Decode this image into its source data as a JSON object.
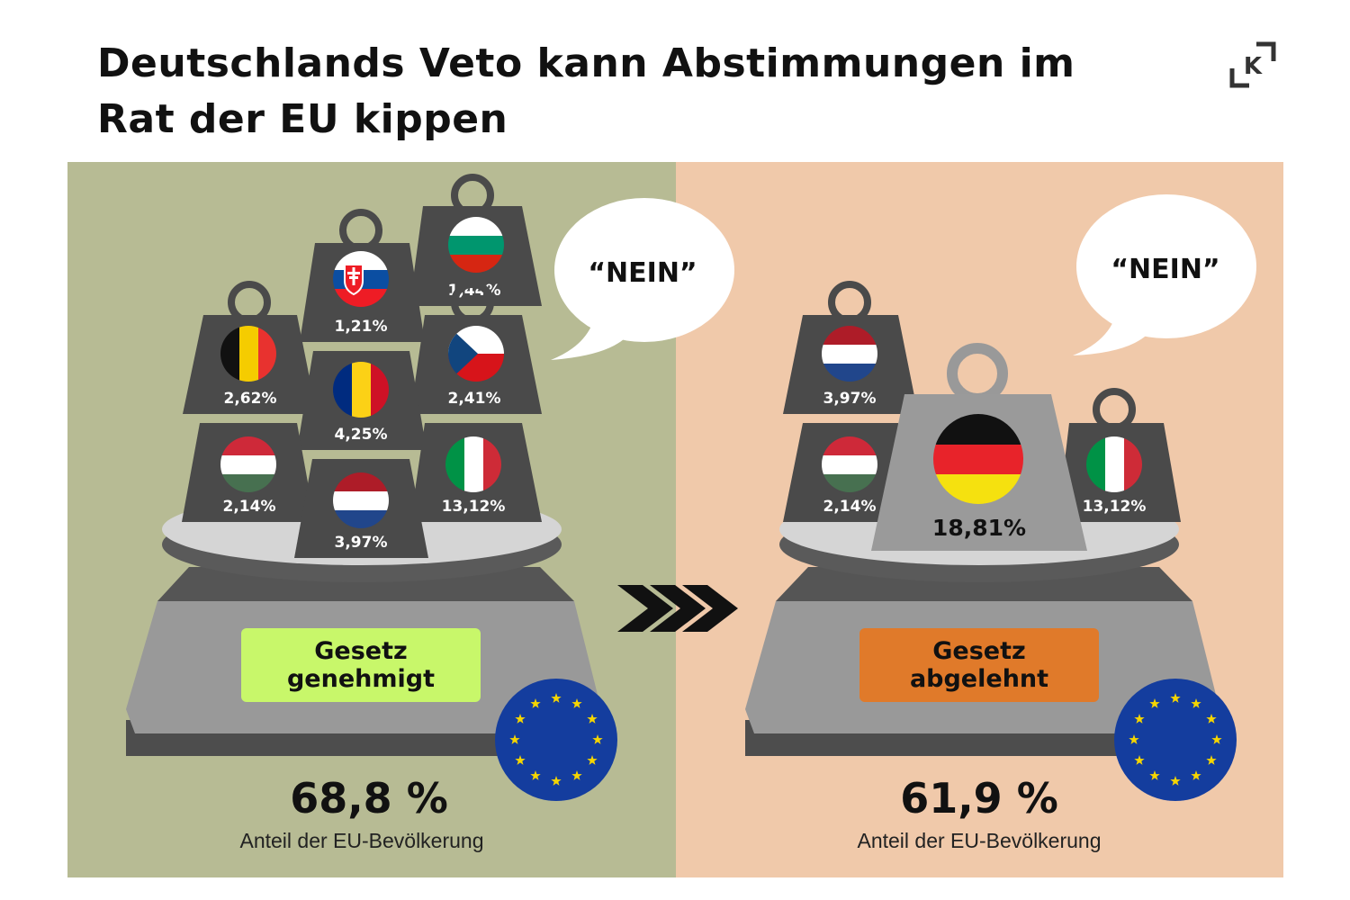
{
  "title": "Deutschlands Veto kann Abstimmungen im Rat der EU kippen",
  "logo_letter": "K",
  "colors": {
    "left_bg": "#b7bb94",
    "right_bg": "#f0c9aa",
    "approved": "#c8f76a",
    "rejected": "#e07a2a"
  },
  "left_panel": {
    "speech": "“NEIN”",
    "weights": [
      {
        "country": "Slowakei",
        "value": "1,21%"
      },
      {
        "country": "Bulgarien",
        "value": "1,44%"
      },
      {
        "country": "Belgien",
        "value": "2,62%"
      },
      {
        "country": "Rumänien",
        "value": "4,25%"
      },
      {
        "country": "Tschechien",
        "value": "2,41%"
      },
      {
        "country": "Ungarn",
        "value": "2,14%"
      },
      {
        "country": "Niederlande",
        "value": "3,97%"
      },
      {
        "country": "Italien",
        "value": "13,12%"
      }
    ],
    "result_label_line1": "Gesetz",
    "result_label_line2": "genehmigt",
    "percent": "68,8 %",
    "caption": "Anteil der EU-Bevölkerung"
  },
  "right_panel": {
    "speech": "“NEIN”",
    "weights": [
      {
        "country": "Niederlande",
        "value": "3,97%"
      },
      {
        "country": "Ungarn",
        "value": "2,14%"
      },
      {
        "country": "Deutschland",
        "value": "18,81%"
      },
      {
        "country": "Italien",
        "value": "13,12%"
      }
    ],
    "result_label_line1": "Gesetz",
    "result_label_line2": "abgelehnt",
    "percent": "61,9 %",
    "caption": "Anteil der EU-Bevölkerung"
  },
  "arrow_icon": "triple-chevron-right-icon",
  "eu_icon": "eu-flag-icon"
}
